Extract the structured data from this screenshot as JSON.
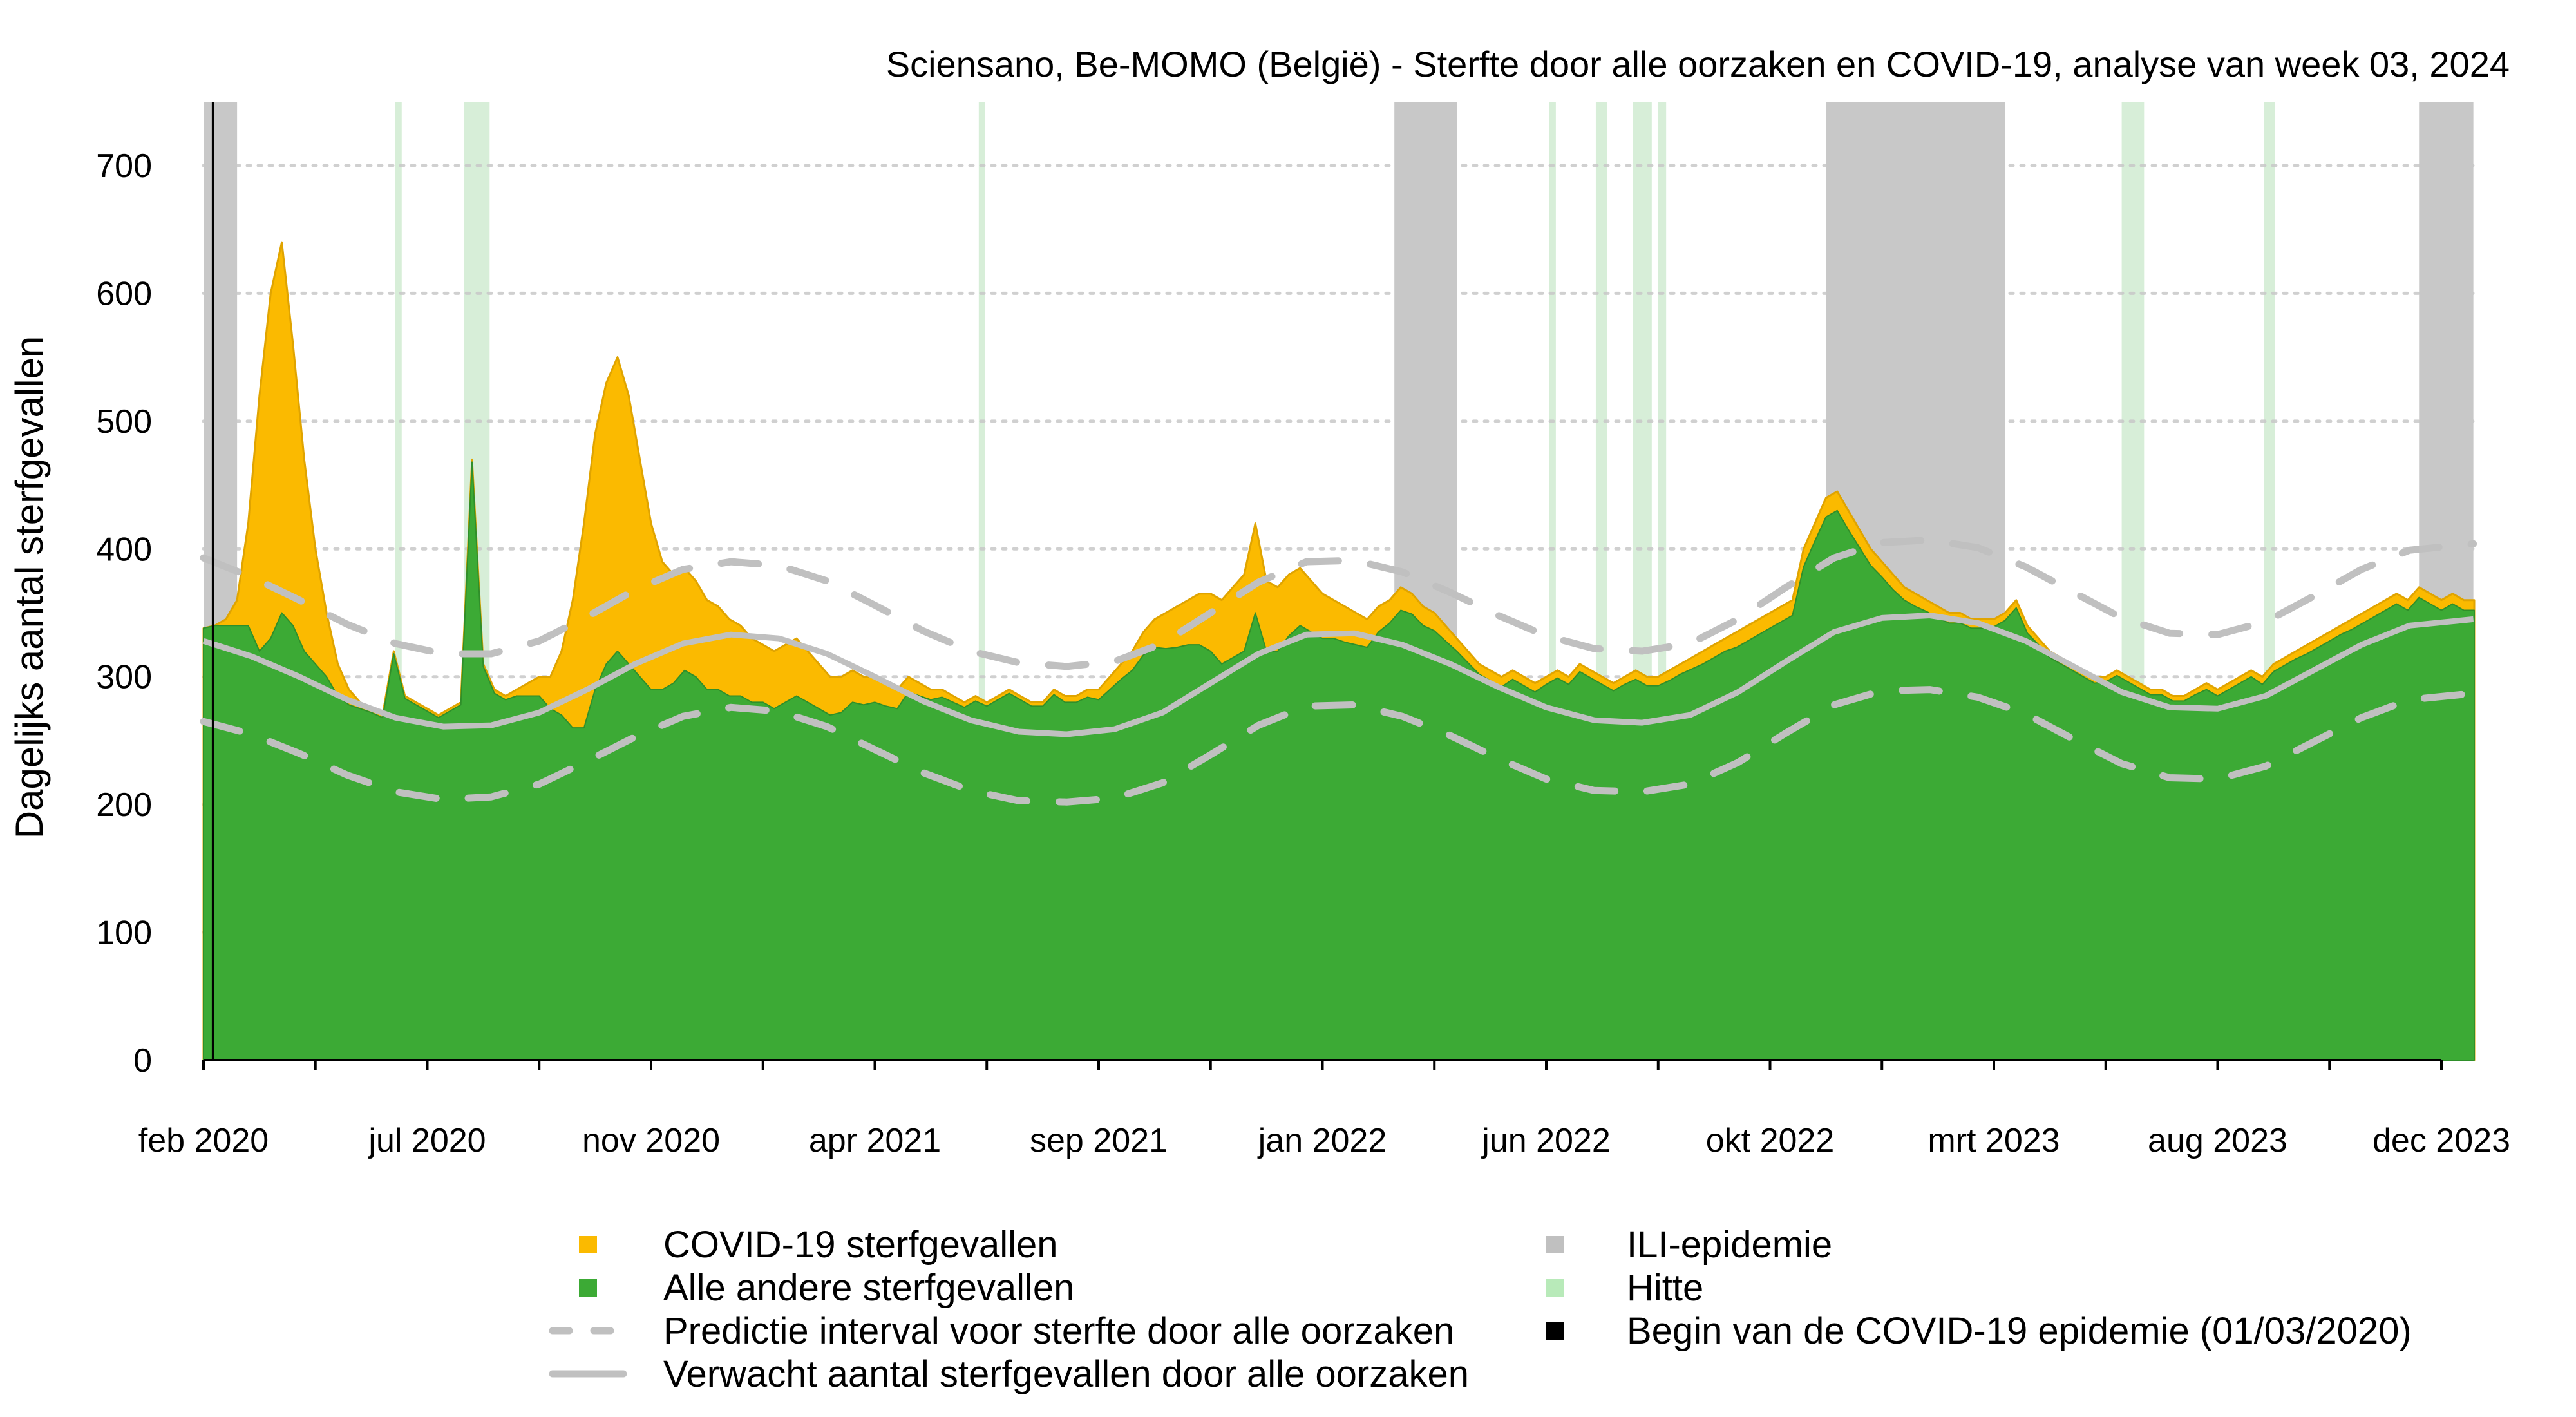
{
  "chart_data": {
    "type": "area",
    "title": "Sciensano, Be-MOMO (België) - Sterfte door alle oorzaken en COVID-19, analyse van week 03, 2024",
    "xlabel": "",
    "ylabel": "Dagelijks aantal sterfgevallen",
    "x_unit": "days since 24/02/2020",
    "xlim": [
      0,
      1420
    ],
    "ylim": [
      0,
      750
    ],
    "grid": true,
    "y_ticks": [
      0,
      100,
      200,
      300,
      400,
      500,
      600,
      700
    ],
    "x_ticks_every_days": 70,
    "x_tick_count": 21,
    "x_tick_labels": [
      {
        "day": 0,
        "label": "feb 2020"
      },
      {
        "day": 140,
        "label": "jul 2020"
      },
      {
        "day": 280,
        "label": "nov 2020"
      },
      {
        "day": 420,
        "label": "apr 2021"
      },
      {
        "day": 560,
        "label": "sep 2021"
      },
      {
        "day": 700,
        "label": "jan 2022"
      },
      {
        "day": 840,
        "label": "jun 2022"
      },
      {
        "day": 980,
        "label": "okt 2022"
      },
      {
        "day": 1120,
        "label": "mrt 2023"
      },
      {
        "day": 1260,
        "label": "aug 2023"
      },
      {
        "day": 1400,
        "label": "dec 2023"
      }
    ],
    "observed_step_days": 7,
    "series": [
      {
        "name": "COVID-19 sterfgevallen",
        "color": "#FBBA00",
        "values": [
          0,
          0,
          5,
          20,
          80,
          200,
          270,
          290,
          220,
          150,
          90,
          50,
          25,
          12,
          5,
          3,
          2,
          2,
          2,
          2,
          2,
          2,
          2,
          2,
          2,
          2,
          3,
          3,
          5,
          10,
          15,
          25,
          50,
          100,
          160,
          200,
          220,
          230,
          210,
          170,
          130,
          100,
          85,
          80,
          75,
          70,
          65,
          60,
          55,
          50,
          45,
          45,
          45,
          45,
          40,
          35,
          30,
          28,
          25,
          22,
          20,
          18,
          15,
          12,
          10,
          8,
          6,
          5,
          4,
          4,
          3,
          3,
          3,
          3,
          3,
          3,
          4,
          5,
          5,
          6,
          8,
          10,
          12,
          15,
          18,
          22,
          28,
          32,
          35,
          40,
          45,
          50,
          55,
          60,
          70,
          55,
          50,
          48,
          45,
          40,
          35,
          30,
          28,
          25,
          22,
          20,
          18,
          18,
          16,
          15,
          14,
          12,
          10,
          9,
          8,
          8,
          8,
          7,
          7,
          7,
          6,
          6,
          6,
          6,
          6,
          6,
          6,
          6,
          7,
          7,
          7,
          8,
          8,
          9,
          10,
          10,
          10,
          12,
          12,
          12,
          12,
          12,
          12,
          14,
          14,
          15,
          15,
          15,
          14,
          13,
          12,
          12,
          10,
          10,
          9,
          9,
          8,
          8,
          7,
          7,
          6,
          6,
          6,
          6,
          5,
          5,
          5,
          5,
          5,
          5,
          4,
          4,
          4,
          4,
          4,
          4,
          4,
          4,
          4,
          5,
          5,
          5,
          5,
          5,
          6,
          6,
          6,
          6,
          7,
          7,
          7,
          7,
          8,
          8,
          8,
          8,
          8,
          8,
          8,
          8,
          8,
          8,
          8
        ]
      },
      {
        "name": "Alle andere sterfgevallen",
        "color": "#3CAA35",
        "total_values": [
          338,
          340,
          345,
          360,
          420,
          520,
          600,
          640,
          560,
          470,
          400,
          350,
          310,
          290,
          280,
          275,
          270,
          320,
          285,
          280,
          275,
          270,
          275,
          280,
          470,
          310,
          290,
          285,
          290,
          295,
          300,
          300,
          320,
          360,
          420,
          490,
          530,
          550,
          520,
          470,
          420,
          390,
          380,
          385,
          375,
          360,
          355,
          345,
          340,
          330,
          325,
          320,
          325,
          330,
          320,
          310,
          300,
          300,
          305,
          300,
          300,
          295,
          290,
          300,
          295,
          290,
          290,
          285,
          280,
          285,
          280,
          285,
          290,
          285,
          280,
          280,
          290,
          285,
          285,
          290,
          290,
          300,
          310,
          320,
          335,
          345,
          350,
          355,
          360,
          365,
          365,
          360,
          370,
          380,
          420,
          375,
          370,
          380,
          385,
          375,
          365,
          360,
          355,
          350,
          345,
          355,
          360,
          370,
          365,
          355,
          350,
          340,
          330,
          320,
          310,
          305,
          300,
          305,
          300,
          295,
          300,
          305,
          300,
          310,
          305,
          300,
          295,
          300,
          305,
          300,
          300,
          305,
          310,
          315,
          320,
          325,
          330,
          335,
          340,
          345,
          350,
          355,
          360,
          400,
          420,
          440,
          445,
          430,
          415,
          400,
          390,
          380,
          370,
          365,
          360,
          355,
          350,
          350,
          345,
          345,
          345,
          350,
          360,
          340,
          330,
          320,
          315,
          310,
          305,
          300,
          300,
          305,
          300,
          295,
          290,
          290,
          285,
          285,
          290,
          295,
          290,
          295,
          300,
          305,
          300,
          310,
          315,
          320,
          325,
          330,
          335,
          340,
          345,
          350,
          355,
          360,
          365,
          360,
          370,
          365,
          360,
          365,
          360
        ]
      },
      {
        "name": "Verwacht aantal sterfgevallen door alle oorzaken",
        "color": "#C0C0C0",
        "days": [
          0,
          30,
          60,
          90,
          120,
          150,
          180,
          210,
          240,
          270,
          300,
          330,
          360,
          390,
          420,
          450,
          480,
          510,
          540,
          570,
          600,
          630,
          660,
          690,
          720,
          750,
          780,
          810,
          840,
          870,
          900,
          930,
          960,
          990,
          1020,
          1050,
          1080,
          1110,
          1140,
          1170,
          1200,
          1230,
          1260,
          1290,
          1320,
          1350,
          1380,
          1420
        ],
        "values": [
          328,
          316,
          300,
          282,
          268,
          261,
          262,
          272,
          290,
          310,
          326,
          333,
          330,
          318,
          300,
          281,
          266,
          257,
          255,
          259,
          272,
          295,
          318,
          333,
          334,
          325,
          310,
          292,
          276,
          266,
          264,
          270,
          288,
          312,
          335,
          346,
          348,
          342,
          328,
          308,
          288,
          276,
          275,
          285,
          305,
          325,
          340,
          345
        ]
      },
      {
        "name": "Predictie interval voor sterfte door alle oorzaken",
        "color": "#C0C0C0",
        "upper": [
          393,
          378,
          360,
          341,
          326,
          318,
          318,
          328,
          347,
          368,
          384,
          390,
          387,
          375,
          356,
          336,
          320,
          311,
          308,
          312,
          326,
          350,
          374,
          390,
          391,
          382,
          366,
          348,
          332,
          322,
          320,
          326,
          345,
          370,
          393,
          405,
          407,
          401,
          386,
          366,
          346,
          334,
          333,
          343,
          363,
          384,
          399,
          404
        ],
        "lower": [
          265,
          255,
          240,
          223,
          210,
          204,
          206,
          216,
          234,
          253,
          269,
          276,
          273,
          261,
          243,
          225,
          211,
          203,
          202,
          205,
          217,
          239,
          262,
          277,
          278,
          269,
          254,
          236,
          220,
          211,
          210,
          216,
          233,
          256,
          278,
          289,
          290,
          284,
          271,
          251,
          232,
          221,
          220,
          230,
          249,
          268,
          282,
          287
        ]
      }
    ],
    "shaded_periods": {
      "ili": {
        "name": "ILI-epidemie",
        "color": "#C8C8C8",
        "ranges": [
          [
            0,
            21
          ],
          [
            745,
            784
          ],
          [
            1015,
            1127
          ],
          [
            1386,
            1420
          ]
        ]
      },
      "heat": {
        "name": "Hitte",
        "color": "#D7EED8",
        "ranges": [
          [
            120,
            124
          ],
          [
            163,
            179
          ],
          [
            485,
            489
          ],
          [
            842,
            846
          ],
          [
            871,
            878
          ],
          [
            894,
            906
          ],
          [
            910,
            915
          ],
          [
            1200,
            1214
          ],
          [
            1289,
            1296
          ]
        ]
      }
    },
    "covid_start": {
      "day": 6,
      "label": "Begin van de COVID-19 epidemie (01/03/2020)"
    },
    "legend": {
      "placement": "bottom",
      "entries": [
        {
          "label": "COVID-19 sterfgevallen",
          "symbol": "square",
          "color": "#FBBA00"
        },
        {
          "label": "Alle andere sterfgevallen",
          "symbol": "square",
          "color": "#3CAA35"
        },
        {
          "label": "Predictie interval voor sterfte door alle oorzaken",
          "symbol": "dashed-line",
          "color": "#C0C0C0"
        },
        {
          "label": "Verwacht aantal sterfgevallen door alle oorzaken",
          "symbol": "solid-line",
          "color": "#C0C0C0"
        },
        {
          "label": "ILI-epidemie",
          "symbol": "square",
          "color": "#C0C0C0"
        },
        {
          "label": "Hitte",
          "symbol": "square",
          "color": "#B8EAB9"
        },
        {
          "label": "Begin van de COVID-19 epidemie (01/03/2020)",
          "symbol": "square",
          "color": "#000000"
        }
      ]
    }
  }
}
